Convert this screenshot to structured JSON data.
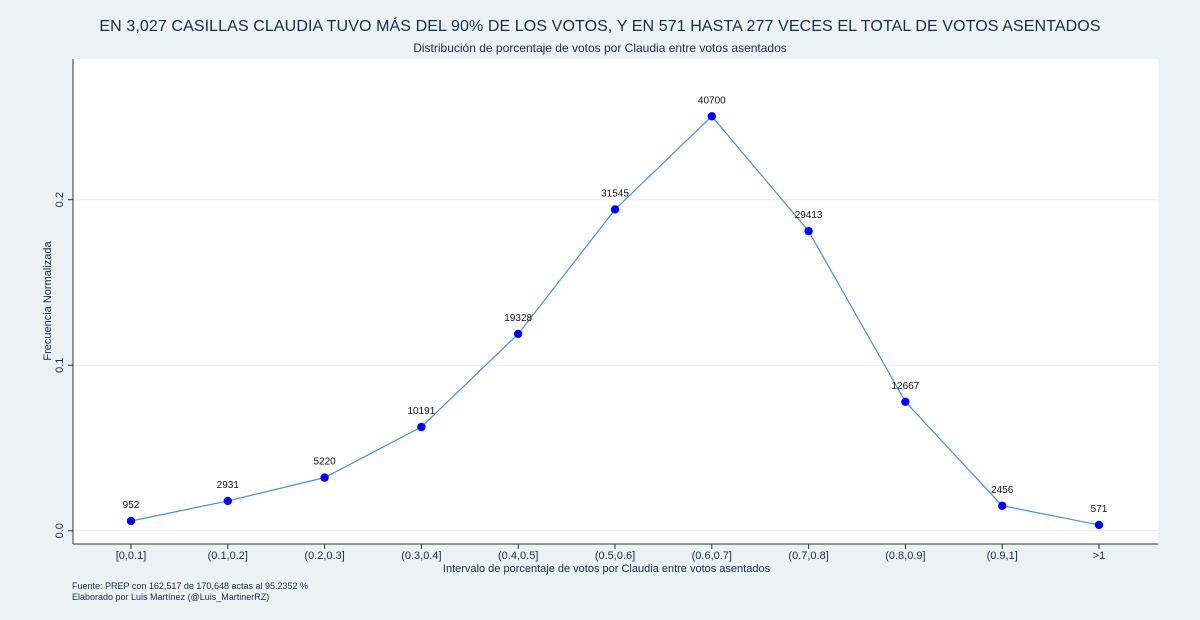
{
  "title": "EN 3,027 CASILLAS CLAUDIA TUVO MÁS DEL 90% DE LOS VOTOS, Y EN 571 HASTA 277 VECES EL TOTAL DE VOTOS ASENTADOS",
  "subtitle": "Distribución de porcentaje de votos por Claudia entre votos asentados",
  "footnotes": {
    "source": "Fuente: PREP con 162,517 de 170,648 actas al  95.2352 %",
    "author": "Elaborado por Luis Martínez (@Luis_MartinerRZ)"
  },
  "colors": {
    "background": "#eaf2f3",
    "plot_background": "#ffffff",
    "line": "#4a8fd6",
    "marker": "#0000ee",
    "text": "#1a2a4a",
    "grid": "#e6ecee"
  },
  "chart_data": {
    "type": "line",
    "title": "EN 3,027 CASILLAS CLAUDIA TUVO MÁS DEL 90% DE LOS VOTOS, Y EN 571 HASTA 277 VECES EL TOTAL DE VOTOS ASENTADOS",
    "subtitle": "Distribución de porcentaje de votos por Claudia entre votos asentados",
    "xlabel": "Intervalo de porcentaje de votos por Claudia entre votos asentados",
    "ylabel": "Frecuencia Normalizada",
    "categories": [
      "[0,0.1]",
      "(0.1,0.2]",
      "(0.2,0.3]",
      "(0.3,0.4]",
      "(0.4,0.5]",
      "(0.5,0.6]",
      "(0.6,0.7]",
      "(0.7,0.8]",
      "(0.8,0.9]",
      "(0.9,1]",
      ">1"
    ],
    "values": [
      0.0059,
      0.018,
      0.0321,
      0.0627,
      0.1189,
      0.1941,
      0.2504,
      0.181,
      0.0779,
      0.0151,
      0.0035
    ],
    "data_labels": [
      "952",
      "2931",
      "5220",
      "10191",
      "19328",
      "31545",
      "40700",
      "29413",
      "12667",
      "2456",
      "571"
    ],
    "ylim": [
      -0.008,
      0.285
    ],
    "yticks": [
      0.0,
      0.1,
      0.2
    ],
    "ytick_labels": [
      "0.0",
      "0.1",
      "0.2"
    ],
    "grid": true,
    "legend": "none"
  }
}
